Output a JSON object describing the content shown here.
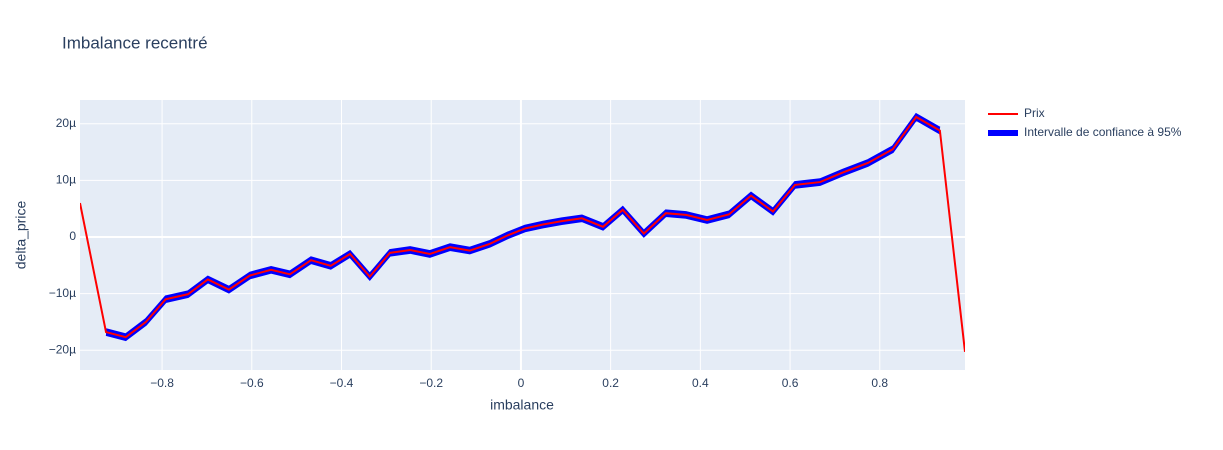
{
  "chart_data": {
    "type": "line",
    "title": "Imbalance recentré",
    "x_label": "imbalance",
    "y_label": "delta_price",
    "x": [
      -0.983,
      -0.925,
      -0.881,
      -0.836,
      -0.792,
      -0.742,
      -0.698,
      -0.651,
      -0.604,
      -0.557,
      -0.515,
      -0.468,
      -0.424,
      -0.381,
      -0.337,
      -0.292,
      -0.247,
      -0.203,
      -0.158,
      -0.114,
      -0.069,
      -0.029,
      0.009,
      0.049,
      0.091,
      0.136,
      0.183,
      0.227,
      0.274,
      0.323,
      0.368,
      0.415,
      0.464,
      0.513,
      0.562,
      0.611,
      0.667,
      0.718,
      0.774,
      0.829,
      0.881,
      0.934,
      0.99
    ],
    "series": [
      {
        "name": "Prix",
        "color": "#ff0000",
        "values": [
          6e-06,
          -1.68e-05,
          -1.77e-05,
          -1.5e-05,
          -1.1e-05,
          -1.01e-05,
          -7.5e-06,
          -9.3e-06,
          -6.8e-06,
          -5.8e-06,
          -6.6e-06,
          -4.1e-06,
          -5.1e-06,
          -3e-06,
          -7e-06,
          -2.8e-06,
          -2.3e-06,
          -3e-06,
          -1.8e-06,
          -2.4e-06,
          -1.2e-06,
          3e-07,
          1.5e-06,
          2.2e-06,
          2.8e-06,
          3.3e-06,
          1.8e-06,
          4.8e-06,
          6e-07,
          4.2e-06,
          3.9e-06,
          3e-06,
          4e-06,
          7.3e-06,
          4.5e-06,
          9.2e-06,
          9.7e-06,
          1.14e-05,
          1.31e-05,
          1.55e-05,
          2.12e-05,
          1.88e-05,
          -2.03e-05
        ]
      },
      {
        "name": "Intervalle de confiance à 95%",
        "color": "#0000ff",
        "lower": [
          null,
          -1.73e-05,
          -1.82e-05,
          -1.55e-05,
          -1.15e-05,
          -1.06e-05,
          -8e-06,
          -9.8e-06,
          -7.3e-06,
          -6.3e-06,
          -7.1e-06,
          -4.6e-06,
          -5.6e-06,
          -3.5e-06,
          -7.5e-06,
          -3.3e-06,
          -2.8e-06,
          -3.5e-06,
          -2.3e-06,
          -2.9e-06,
          -1.7e-06,
          -2e-07,
          1e-06,
          1.7e-06,
          2.3e-06,
          2.8e-06,
          1.3e-06,
          4.3e-06,
          1e-07,
          3.7e-06,
          3.4e-06,
          2.5e-06,
          3.5e-06,
          6.8e-06,
          4e-06,
          8.7e-06,
          9.2e-06,
          1.09e-05,
          1.26e-05,
          1.5e-05,
          2.07e-05,
          1.83e-05,
          null
        ],
        "upper": [
          null,
          -1.63e-05,
          -1.72e-05,
          -1.45e-05,
          -1.05e-05,
          -9.6e-06,
          -7e-06,
          -8.8e-06,
          -6.3e-06,
          -5.3e-06,
          -6.1e-06,
          -3.6e-06,
          -4.6e-06,
          -2.5e-06,
          -6.5e-06,
          -2.3e-06,
          -1.8e-06,
          -2.5e-06,
          -1.3e-06,
          -1.9e-06,
          -7e-07,
          8e-07,
          2e-06,
          2.7e-06,
          3.3e-06,
          3.8e-06,
          2.3e-06,
          5.3e-06,
          1.1e-06,
          4.7e-06,
          4.4e-06,
          3.5e-06,
          4.5e-06,
          7.8e-06,
          5e-06,
          9.7e-06,
          1.02e-05,
          1.19e-05,
          1.36e-05,
          1.6e-05,
          2.17e-05,
          1.93e-05,
          null
        ]
      }
    ],
    "xlim": [
      -0.983,
      0.99
    ],
    "xticks": [
      {
        "value": -0.8,
        "label": "−0.8"
      },
      {
        "value": -0.6,
        "label": "−0.6"
      },
      {
        "value": -0.4,
        "label": "−0.4"
      },
      {
        "value": -0.2,
        "label": "−0.2"
      },
      0,
      0.2,
      0.4,
      0.6,
      0.8
    ],
    "ylim": [
      -2.35e-05,
      2.42e-05
    ],
    "yticks": [
      {
        "value": -2e-05,
        "label": "−20µ"
      },
      {
        "value": -1e-05,
        "label": "−10µ"
      },
      0,
      {
        "value": 1e-05,
        "label": "10µ"
      },
      {
        "value": 2e-05,
        "label": "20µ"
      }
    ],
    "grid": true,
    "legend": "right"
  }
}
